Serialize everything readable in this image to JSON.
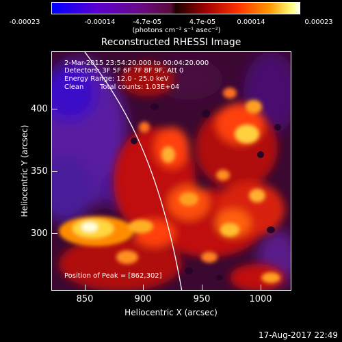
{
  "colorbar": {
    "ticks": [
      "-0.00023",
      "-0.00014",
      "-4.7e-05",
      "4.7e-05",
      "0.00014",
      "0.00023"
    ],
    "unit_label": "(photons cm⁻² s⁻¹ asec⁻²)"
  },
  "title": "Reconstructed RHESSI Image",
  "annotations": {
    "time_range": "2-Mar-2015 23:54:20.000 to 00:04:20.000",
    "detectors": "Detectors: 3F 5F 6F 7F 8F 9F, Att 0",
    "energy": "Energy Range: 12.0 - 25.0 keV",
    "algorithm": "Clean",
    "counts": "Total counts: 1.03E+04",
    "peak": "Position of Peak = [862,302]"
  },
  "axes": {
    "x_label": "Heliocentric X (arcsec)",
    "y_label": "Heliocentric Y (arcsec)",
    "x_ticks": [
      "850",
      "900",
      "950",
      "1000"
    ],
    "y_ticks": [
      "400",
      "350",
      "300"
    ]
  },
  "footer": {
    "timestamp": "17-Aug-2017 22:49"
  },
  "colors": {
    "background": "#000000",
    "text": "#ffffff",
    "limb": "#ffffff"
  }
}
